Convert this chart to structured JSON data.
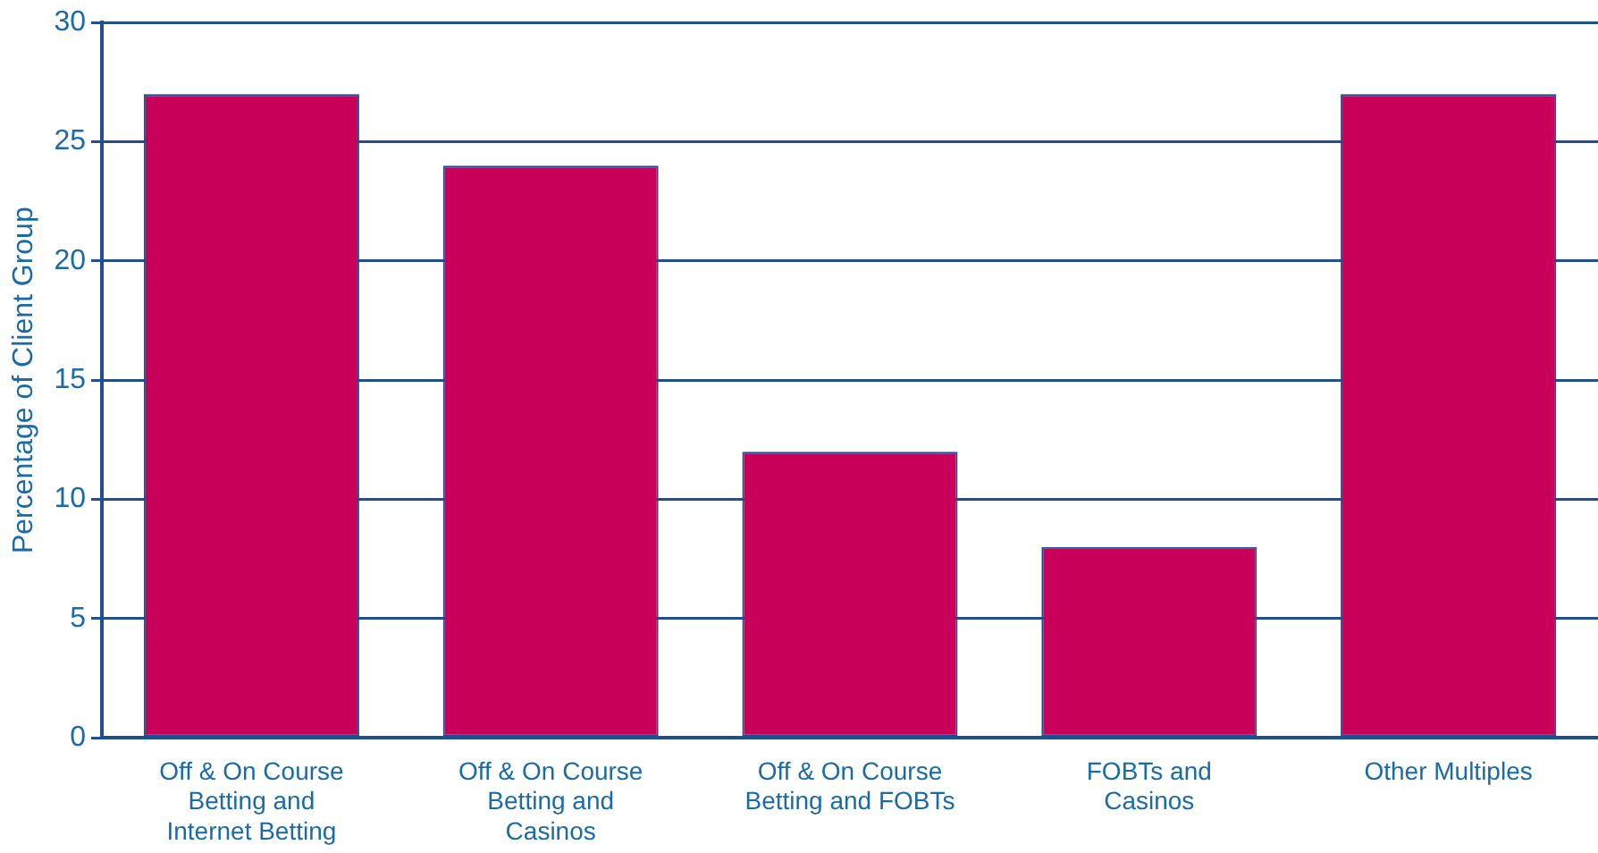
{
  "chart_data": {
    "type": "bar",
    "ylabel": "Percentage of Client Group",
    "categories": [
      "Off & On Course Betting and Internet Betting",
      "Off & On Course Betting and Casinos",
      "Off & On Course Betting and FOBTs",
      "FOBTs and Casinos",
      "Other Multiples"
    ],
    "values": [
      27,
      24,
      12,
      8,
      27
    ],
    "color": "#c8005a",
    "ylim": [
      0,
      30
    ],
    "yticks": [
      0,
      5,
      10,
      15,
      20,
      25,
      30
    ],
    "grid": "y",
    "legend": false
  }
}
